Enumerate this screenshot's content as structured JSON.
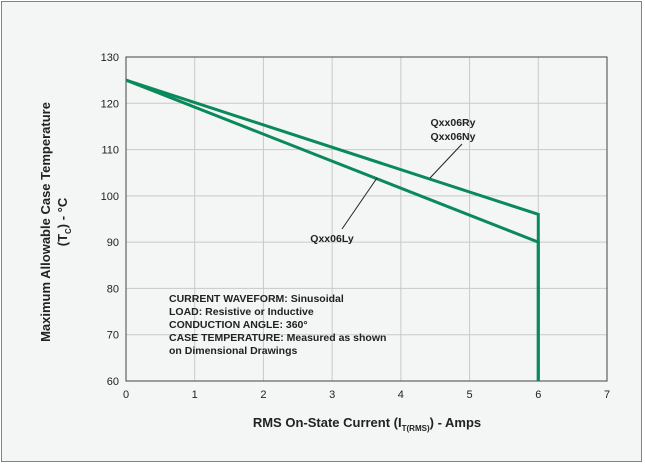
{
  "chart_data": {
    "type": "line",
    "xlabel": "RMS On-State Current (I",
    "xlabel_sub": "T(RMS)",
    "xlabel_suffix": ") - Amps",
    "ylabel_line1": "Maximum Allowable Case Temperature",
    "ylabel_line2_pre": "(T",
    "ylabel_line2_sub": "C",
    "ylabel_line2_post": ") - °C",
    "xlim": [
      0,
      7
    ],
    "ylim": [
      60,
      130
    ],
    "x_ticks": [
      "0",
      "1",
      "2",
      "3",
      "4",
      "5",
      "6",
      "7"
    ],
    "y_ticks": [
      "60",
      "70",
      "80",
      "90",
      "100",
      "110",
      "120",
      "130"
    ],
    "grid": true,
    "line_color": "#0a8a5a",
    "series": [
      {
        "name": "Qxx06Ry / Qxx06Ny",
        "x": [
          0,
          6,
          6
        ],
        "y": [
          125,
          96,
          60
        ]
      },
      {
        "name": "Qxx06Ly",
        "x": [
          0,
          6,
          6
        ],
        "y": [
          125,
          90,
          60
        ]
      }
    ],
    "annotations": {
      "ry_label": "Qxx06Ry",
      "ny_label": "Qxx06Ny",
      "ly_label": "Qxx06Ly"
    },
    "notes": [
      "CURRENT WAVEFORM: Sinusoidal",
      "LOAD: Resistive or Inductive",
      "CONDUCTION ANGLE: 360°",
      "CASE TEMPERATURE: Measured as shown",
      "on Dimensional Drawings"
    ]
  }
}
